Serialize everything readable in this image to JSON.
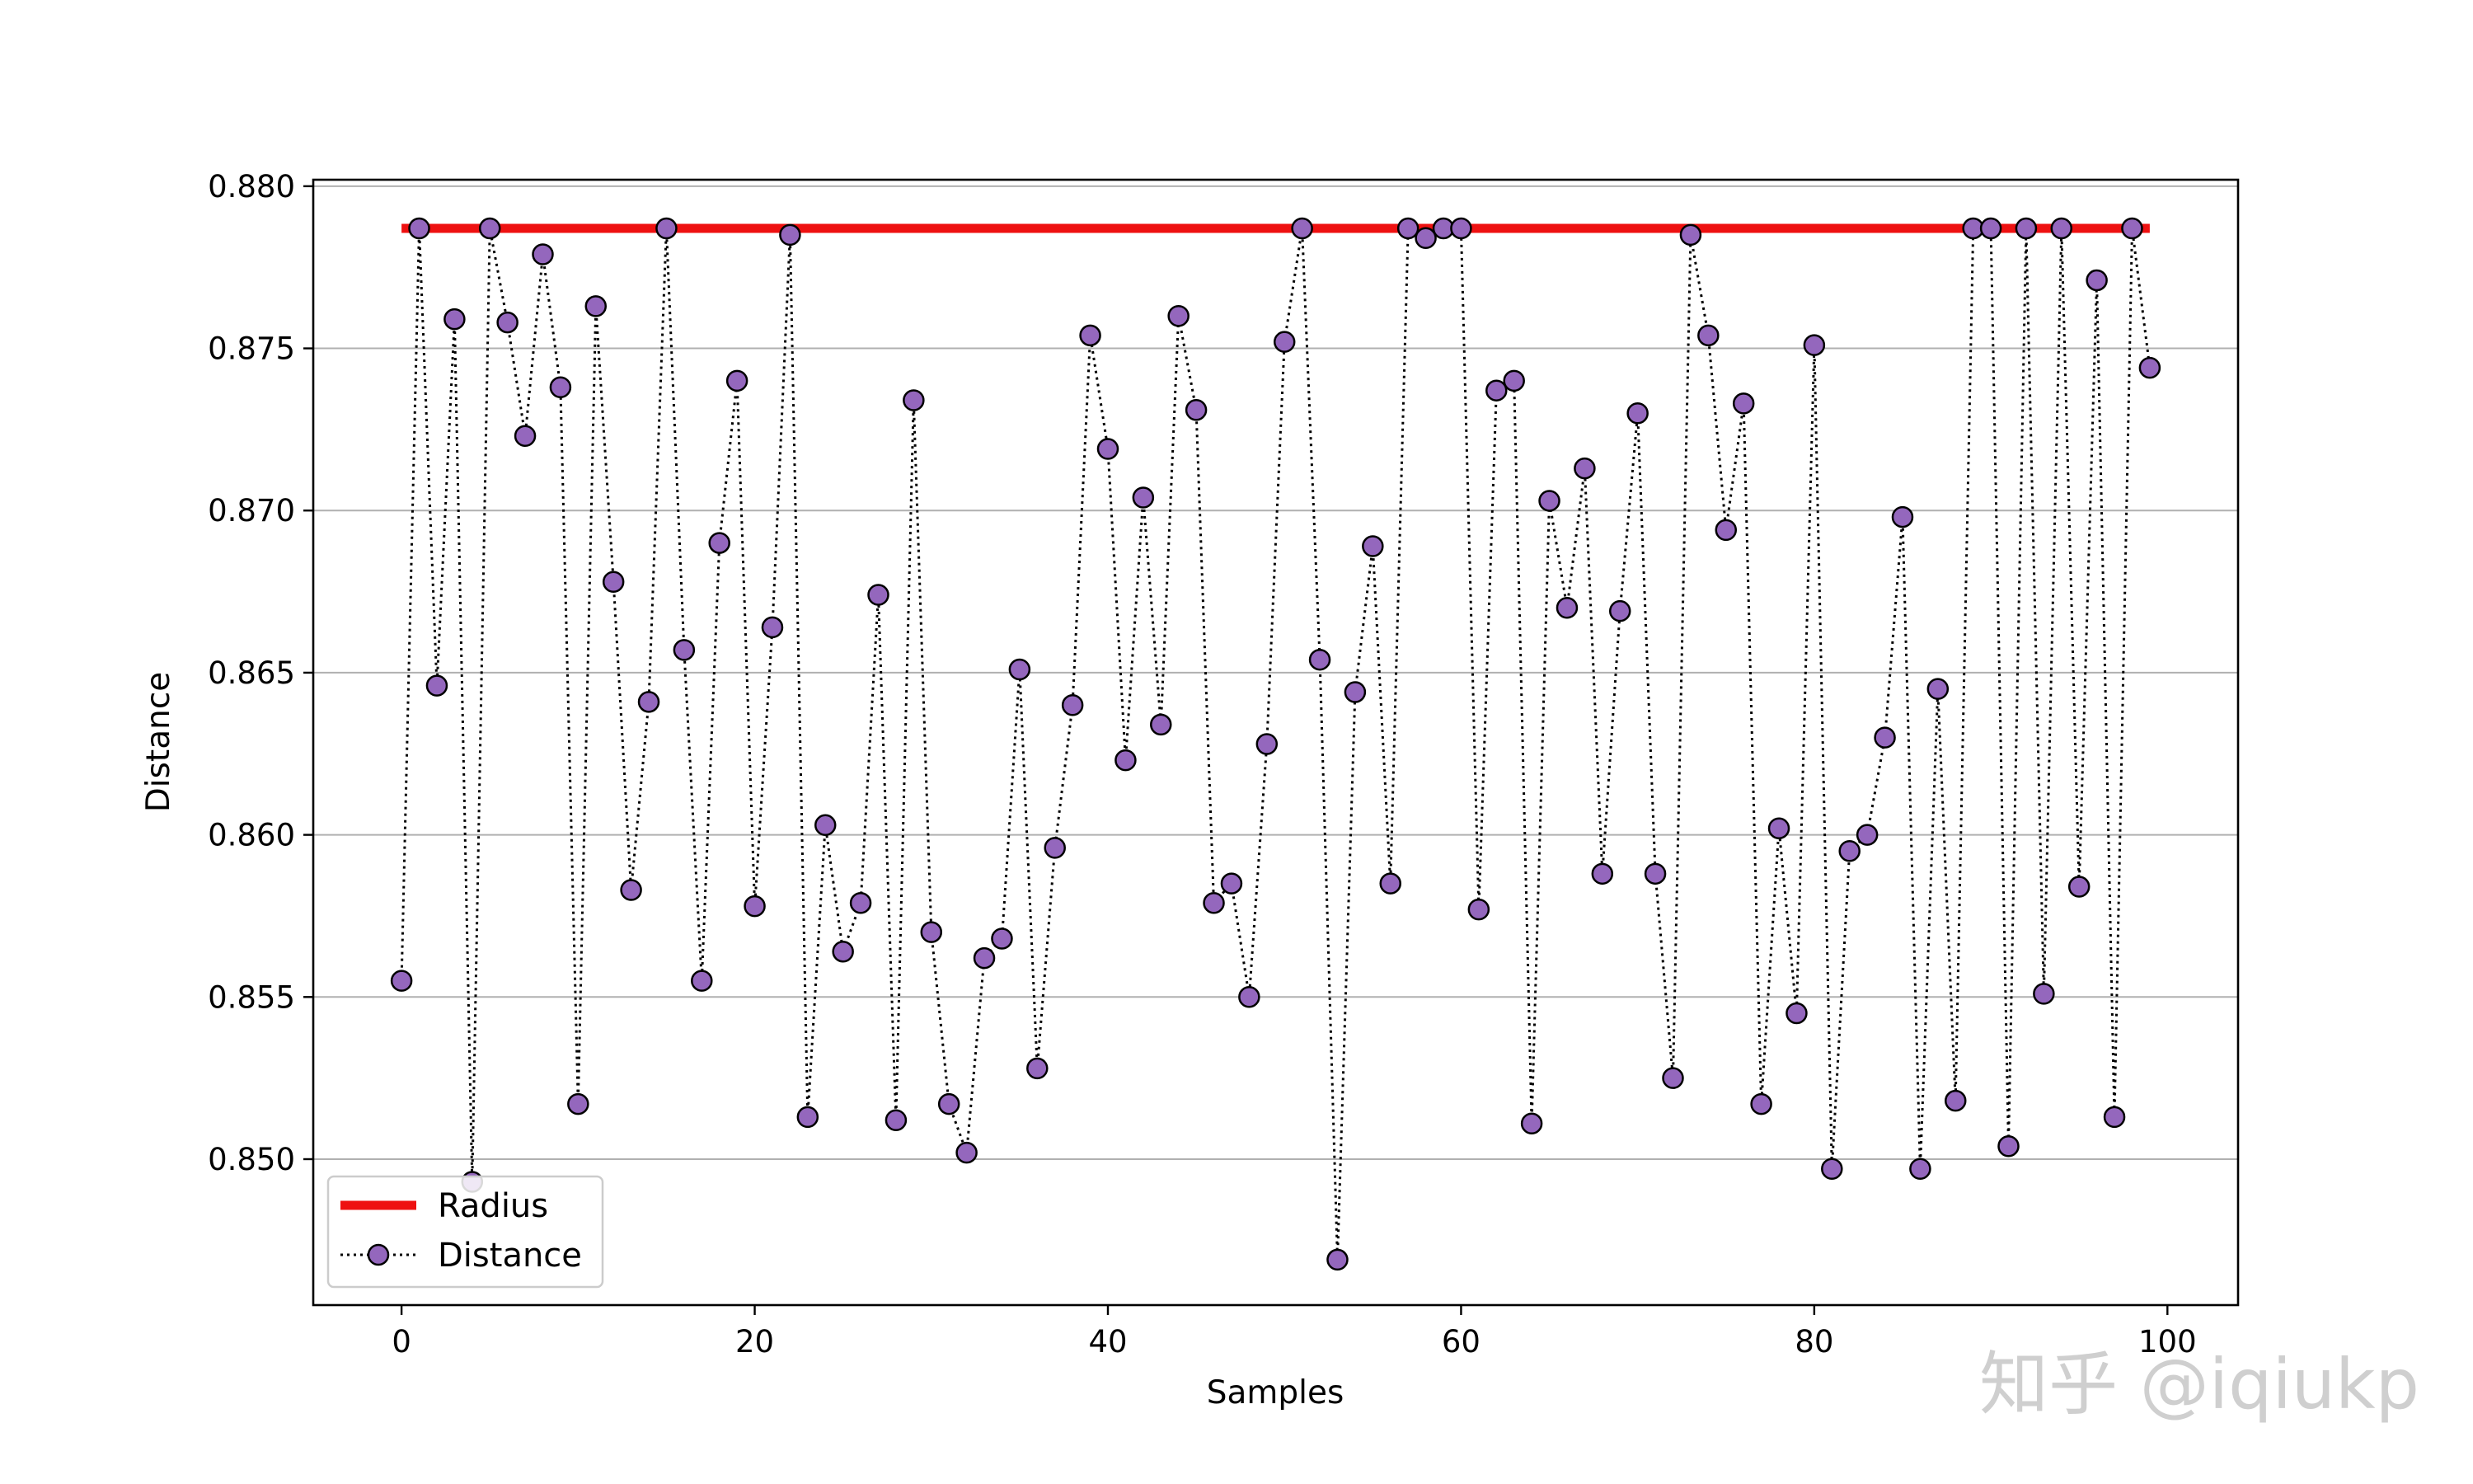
{
  "chart_data": {
    "type": "line",
    "title": "",
    "xlabel": "Samples",
    "ylabel": "Distance",
    "xlim": [
      -5,
      104
    ],
    "ylim": [
      0.8455,
      0.8802
    ],
    "xticks": [
      0,
      20,
      40,
      60,
      80,
      100
    ],
    "xtick_labels": [
      "0",
      "20",
      "40",
      "60",
      "80",
      "100"
    ],
    "yticks": [
      0.85,
      0.855,
      0.86,
      0.865,
      0.87,
      0.875,
      0.88
    ],
    "ytick_labels": [
      "0.850",
      "0.855",
      "0.860",
      "0.865",
      "0.870",
      "0.875",
      "0.880"
    ],
    "grid": "horizontal",
    "legend_position": "lower-left",
    "series": [
      {
        "name": "Radius",
        "style": "solid-thick",
        "color": "#ee1111",
        "x": [
          0,
          99
        ],
        "values": [
          0.8787,
          0.8787
        ]
      },
      {
        "name": "Distance",
        "style": "dotted-with-markers",
        "line_color": "#000000",
        "marker_color": "#9467bd",
        "x": [
          0,
          1,
          2,
          3,
          4,
          5,
          6,
          7,
          8,
          9,
          10,
          11,
          12,
          13,
          14,
          15,
          16,
          17,
          18,
          19,
          20,
          21,
          22,
          23,
          24,
          25,
          26,
          27,
          28,
          29,
          30,
          31,
          32,
          33,
          34,
          35,
          36,
          37,
          38,
          39,
          40,
          41,
          42,
          43,
          44,
          45,
          46,
          47,
          48,
          49,
          50,
          51,
          52,
          53,
          54,
          55,
          56,
          57,
          58,
          59,
          60,
          61,
          62,
          63,
          64,
          65,
          66,
          67,
          68,
          69,
          70,
          71,
          72,
          73,
          74,
          75,
          76,
          77,
          78,
          79,
          80,
          81,
          82,
          83,
          84,
          85,
          86,
          87,
          88,
          89,
          90,
          91,
          92,
          93,
          94,
          95,
          96,
          97,
          98,
          99
        ],
        "values": [
          0.8555,
          0.8787,
          0.8646,
          0.8759,
          0.8493,
          0.8787,
          0.8758,
          0.8723,
          0.8779,
          0.8738,
          0.8517,
          0.8763,
          0.8678,
          0.8583,
          0.8641,
          0.8787,
          0.8657,
          0.8555,
          0.869,
          0.874,
          0.8578,
          0.8664,
          0.8785,
          0.8513,
          0.8603,
          0.8564,
          0.8579,
          0.8674,
          0.8512,
          0.8734,
          0.857,
          0.8517,
          0.8502,
          0.8562,
          0.8568,
          0.8651,
          0.8528,
          0.8596,
          0.864,
          0.8754,
          0.8719,
          0.8623,
          0.8704,
          0.8634,
          0.876,
          0.8731,
          0.8579,
          0.8585,
          0.855,
          0.8628,
          0.8752,
          0.8787,
          0.8654,
          0.8469,
          0.8644,
          0.8689,
          0.8585,
          0.8787,
          0.8784,
          0.8787,
          0.8787,
          0.8577,
          0.8737,
          0.874,
          0.8511,
          0.8703,
          0.867,
          0.8713,
          0.8588,
          0.8669,
          0.873,
          0.8588,
          0.8525,
          0.8785,
          0.8754,
          0.8694,
          0.8733,
          0.8517,
          0.8602,
          0.8545,
          0.8751,
          0.8497,
          0.8595,
          0.86,
          0.863,
          0.8698,
          0.8497,
          0.8645,
          0.8518,
          0.8787,
          0.8787,
          0.8504,
          0.8787,
          0.8551,
          0.8787,
          0.8584,
          0.8771,
          0.8513,
          0.8787,
          0.8744
        ]
      }
    ]
  },
  "watermark": "知乎 @iqiukp"
}
